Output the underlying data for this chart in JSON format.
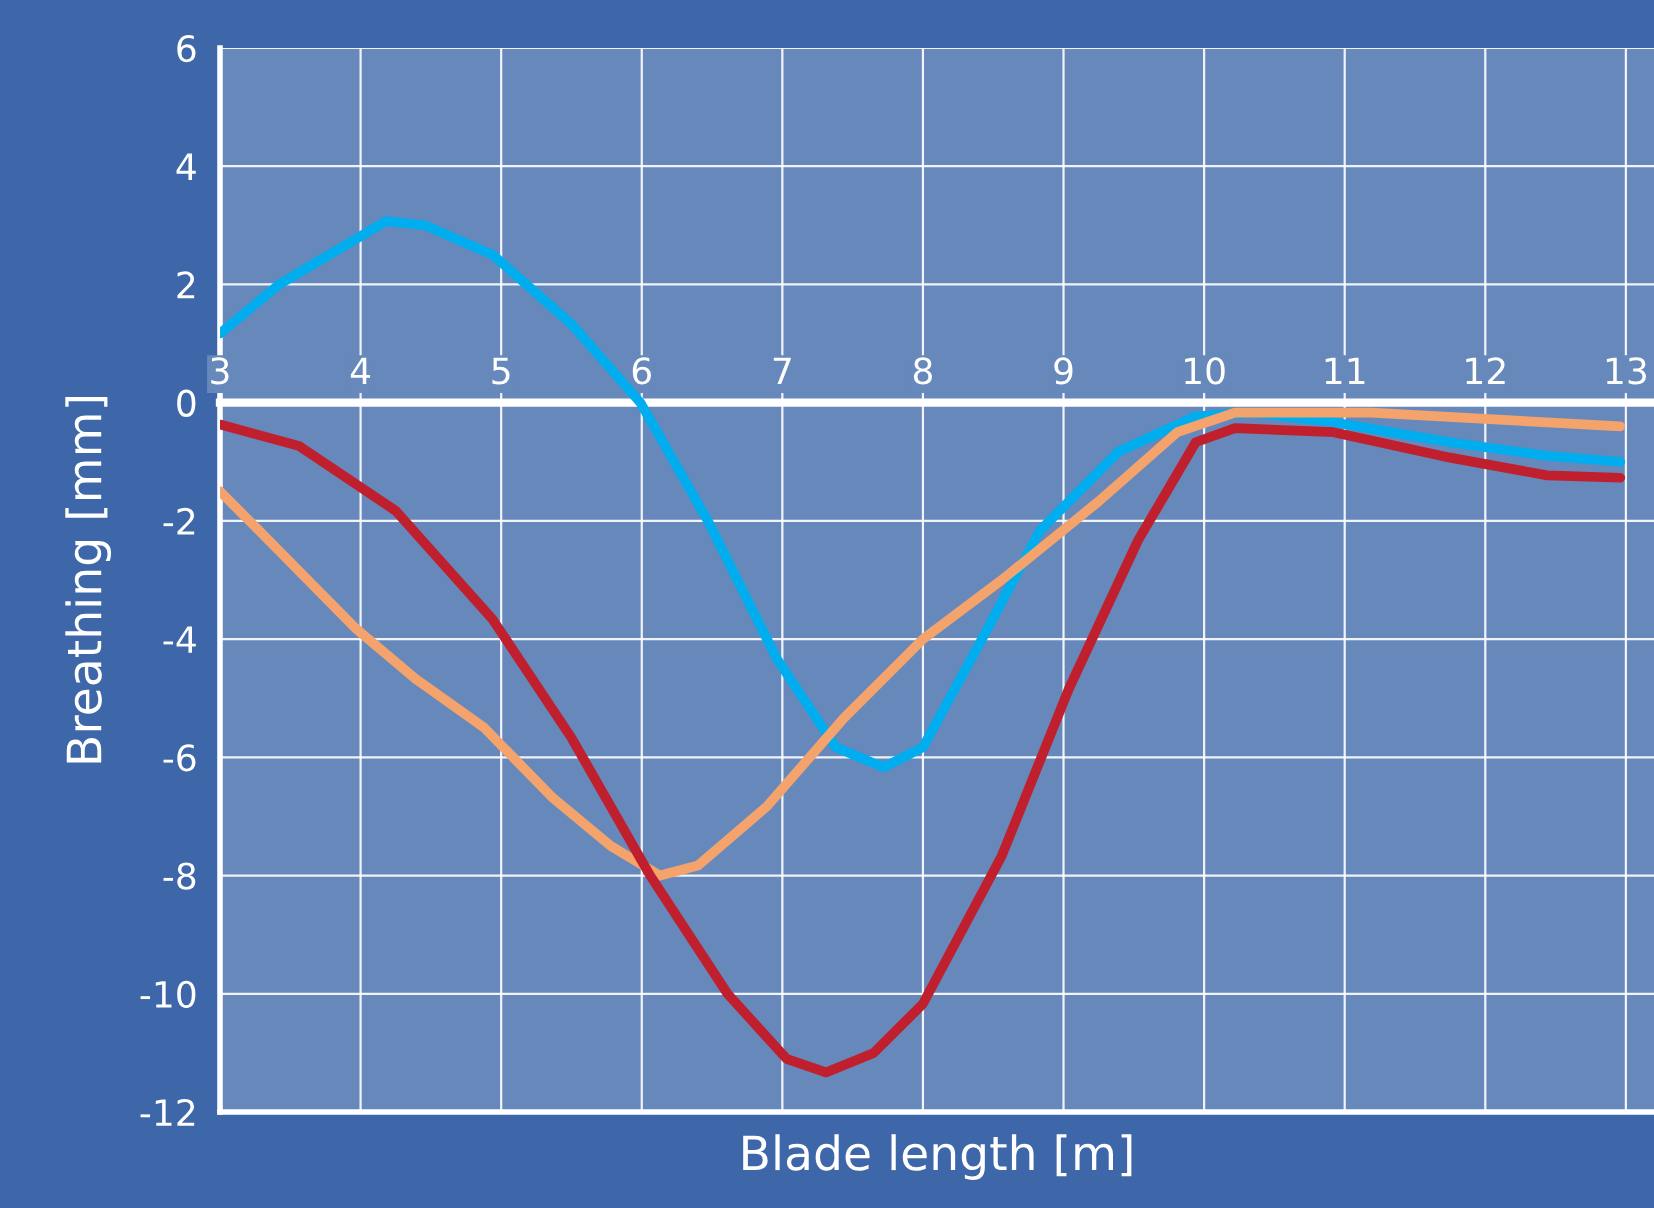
{
  "chart_data": {
    "type": "line",
    "xlabel": "Blade length [m]",
    "ylabel": "Breathing [mm]",
    "xlim": [
      3,
      13.2
    ],
    "xticks": [
      3,
      4,
      5,
      6,
      7,
      8,
      9,
      10,
      11,
      12,
      13
    ],
    "ylim": [
      -12,
      6
    ],
    "yticks": [
      -12,
      -10,
      -8,
      -6,
      -4,
      -2,
      0,
      2,
      4,
      6
    ],
    "grid": true,
    "marker": "none",
    "line_style": "solid",
    "series": [
      {
        "color": "#00aeef",
        "x": [
          3,
          3.42,
          4.18,
          4.46,
          4.94,
          5.5,
          5.99,
          6.47,
          6.96,
          7.38,
          7.72,
          8,
          8.42,
          8.83,
          9.39,
          9.94,
          10.36,
          10.92,
          11.75,
          12.44,
          12.96
        ],
        "values": [
          1.17,
          2,
          3.07,
          3,
          2.5,
          1.33,
          0,
          -2,
          -4.33,
          -5.83,
          -6.17,
          -5.83,
          -4,
          -2.17,
          -0.83,
          -0.23,
          -0.17,
          -0.33,
          -0.67,
          -0.9,
          -1.0
        ]
      },
      {
        "color": "#f4a36c",
        "x": [
          3,
          3.28,
          3.97,
          4.39,
          4.88,
          5.36,
          5.78,
          6.13,
          6.4,
          6.89,
          7.44,
          8,
          8.56,
          9.25,
          9.81,
          10.22,
          11.19,
          12.96
        ],
        "values": [
          -1.5,
          -2.17,
          -3.83,
          -4.67,
          -5.5,
          -6.67,
          -7.5,
          -8,
          -7.83,
          -6.83,
          -5.33,
          -4,
          -3,
          -1.67,
          -0.5,
          -0.17,
          -0.17,
          -0.4
        ]
      },
      {
        "color": "#c0202e",
        "x": [
          3,
          3.56,
          4.25,
          4.94,
          5.5,
          6.06,
          6.61,
          7.03,
          7.31,
          7.65,
          8,
          8.56,
          9.04,
          9.53,
          9.94,
          10.22,
          10.92,
          11.75,
          12.44,
          12.96
        ],
        "values": [
          -0.37,
          -0.73,
          -1.83,
          -3.67,
          -5.67,
          -8,
          -10,
          -11.1,
          -11.33,
          -11,
          -10.17,
          -7.67,
          -4.83,
          -2.33,
          -0.67,
          -0.43,
          -0.5,
          -0.93,
          -1.23,
          -1.27
        ]
      }
    ]
  }
}
